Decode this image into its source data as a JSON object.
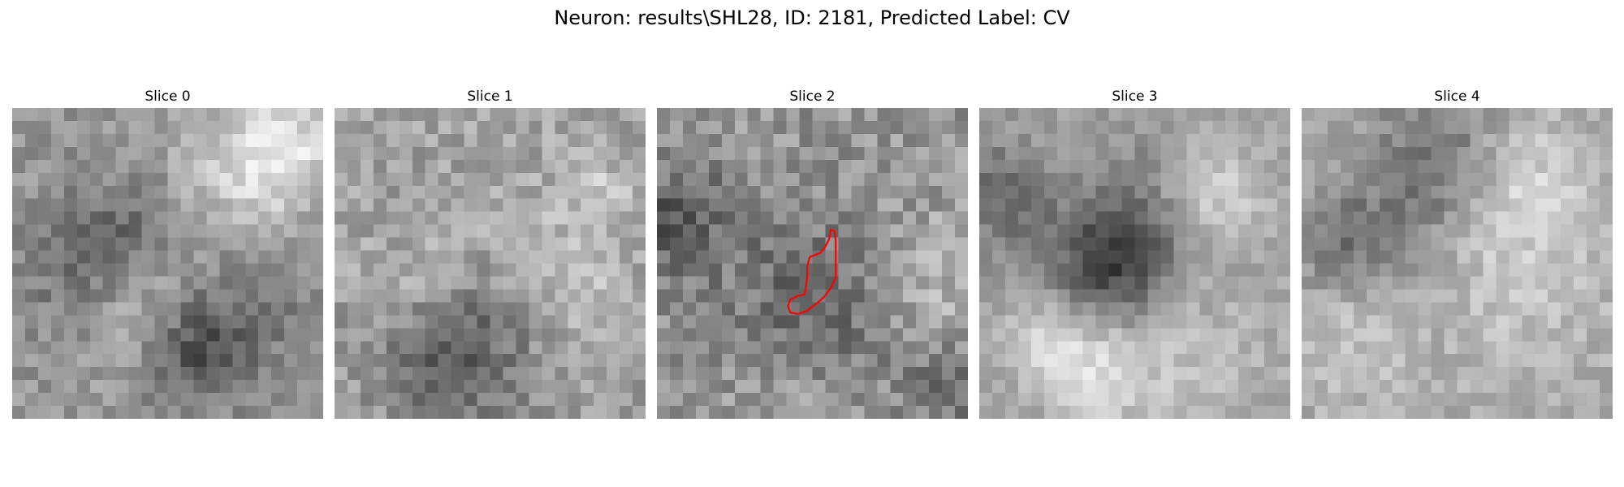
{
  "figure": {
    "title": "Neuron: results\\SHL28, ID: 2181, Predicted Label: CV"
  },
  "slices": [
    {
      "title": "Slice 0"
    },
    {
      "title": "Slice 1"
    },
    {
      "title": "Slice 2",
      "has_contour": true,
      "contour_color": "#ff0000"
    },
    {
      "title": "Slice 3"
    },
    {
      "title": "Slice 4"
    }
  ]
}
